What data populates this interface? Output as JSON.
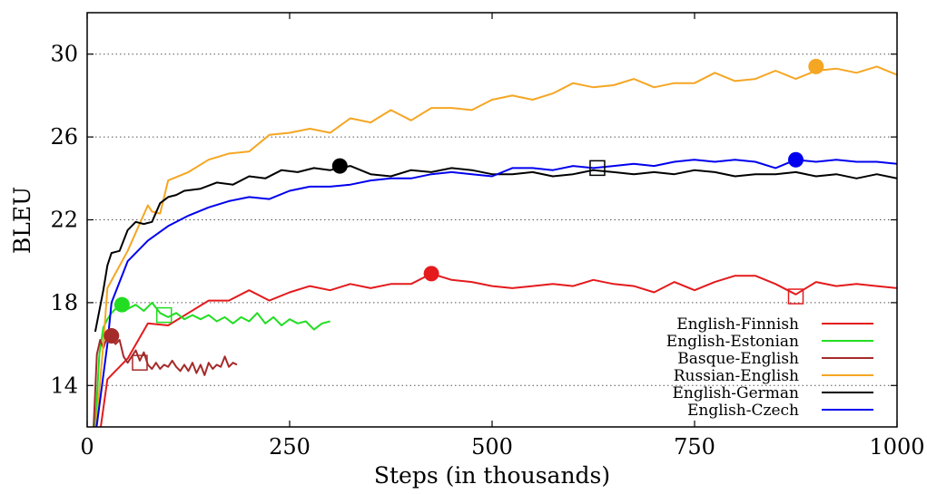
{
  "chart_data": {
    "type": "line",
    "title": "",
    "xlabel": "Steps (in thousands)",
    "ylabel": "BLEU",
    "xlim": [
      0,
      1000
    ],
    "ylim": [
      12,
      32
    ],
    "xticks": [
      0,
      250,
      500,
      750,
      1000
    ],
    "yticks": [
      14,
      18,
      22,
      26,
      30
    ],
    "grid": "horizontal dotted",
    "legend_position": "bottom-right",
    "series": [
      {
        "name": "English-Finnish",
        "color": "#e41a1c",
        "points": [
          [
            15,
            11.5
          ],
          [
            25,
            14.3
          ],
          [
            50,
            15.3
          ],
          [
            75,
            17.0
          ],
          [
            100,
            16.9
          ],
          [
            125,
            17.5
          ],
          [
            150,
            18.1
          ],
          [
            175,
            18.1
          ],
          [
            200,
            18.6
          ],
          [
            225,
            18.1
          ],
          [
            250,
            18.5
          ],
          [
            275,
            18.8
          ],
          [
            300,
            18.6
          ],
          [
            325,
            18.9
          ],
          [
            350,
            18.7
          ],
          [
            375,
            18.9
          ],
          [
            400,
            18.9
          ],
          [
            425,
            19.4
          ],
          [
            450,
            19.1
          ],
          [
            475,
            19.0
          ],
          [
            500,
            18.8
          ],
          [
            525,
            18.7
          ],
          [
            550,
            18.8
          ],
          [
            575,
            18.9
          ],
          [
            600,
            18.8
          ],
          [
            625,
            19.1
          ],
          [
            650,
            18.9
          ],
          [
            675,
            18.8
          ],
          [
            700,
            18.5
          ],
          [
            725,
            19.0
          ],
          [
            750,
            18.6
          ],
          [
            775,
            19.0
          ],
          [
            800,
            19.3
          ],
          [
            825,
            19.3
          ],
          [
            850,
            18.9
          ],
          [
            875,
            18.4
          ],
          [
            900,
            19.0
          ],
          [
            925,
            18.8
          ],
          [
            950,
            18.9
          ],
          [
            975,
            18.8
          ],
          [
            1000,
            18.7
          ]
        ],
        "marker_circle": [
          425,
          19.4
        ],
        "marker_square": [
          875,
          18.3
        ]
      },
      {
        "name": "English-Estonian",
        "color": "#22dd22",
        "points": [
          [
            10,
            12.0
          ],
          [
            15,
            15.5
          ],
          [
            20,
            16.8
          ],
          [
            25,
            17.2
          ],
          [
            30,
            17.5
          ],
          [
            40,
            17.9
          ],
          [
            50,
            17.7
          ],
          [
            60,
            17.9
          ],
          [
            70,
            17.6
          ],
          [
            80,
            18.0
          ],
          [
            90,
            17.5
          ],
          [
            100,
            17.3
          ],
          [
            110,
            17.5
          ],
          [
            120,
            17.2
          ],
          [
            130,
            17.4
          ],
          [
            140,
            17.2
          ],
          [
            150,
            17.4
          ],
          [
            160,
            17.1
          ],
          [
            170,
            17.3
          ],
          [
            180,
            17.0
          ],
          [
            190,
            17.3
          ],
          [
            200,
            17.1
          ],
          [
            210,
            17.5
          ],
          [
            220,
            17.0
          ],
          [
            230,
            17.3
          ],
          [
            240,
            16.9
          ],
          [
            250,
            17.2
          ],
          [
            260,
            17.0
          ],
          [
            270,
            17.1
          ],
          [
            280,
            16.7
          ],
          [
            290,
            17.0
          ],
          [
            300,
            17.1
          ]
        ],
        "marker_circle": [
          43,
          17.9
        ],
        "marker_square": [
          95,
          17.4
        ]
      },
      {
        "name": "Basque-English",
        "color": "#a52a2a",
        "points": [
          [
            8,
            12.0
          ],
          [
            12,
            15.5
          ],
          [
            16,
            16.2
          ],
          [
            20,
            15.8
          ],
          [
            25,
            16.4
          ],
          [
            30,
            16.3
          ],
          [
            35,
            16.0
          ],
          [
            40,
            16.2
          ],
          [
            45,
            15.4
          ],
          [
            50,
            15.1
          ],
          [
            55,
            15.4
          ],
          [
            60,
            15.7
          ],
          [
            65,
            15.2
          ],
          [
            70,
            15.6
          ],
          [
            75,
            15.0
          ],
          [
            80,
            14.8
          ],
          [
            85,
            15.1
          ],
          [
            90,
            14.8
          ],
          [
            95,
            15.0
          ],
          [
            100,
            14.9
          ],
          [
            105,
            15.2
          ],
          [
            110,
            14.9
          ],
          [
            115,
            14.7
          ],
          [
            120,
            15.0
          ],
          [
            125,
            14.7
          ],
          [
            130,
            15.1
          ],
          [
            135,
            14.6
          ],
          [
            140,
            15.0
          ],
          [
            145,
            14.5
          ],
          [
            150,
            15.1
          ],
          [
            155,
            14.8
          ],
          [
            160,
            15.0
          ],
          [
            165,
            14.9
          ],
          [
            170,
            15.4
          ],
          [
            175,
            14.9
          ],
          [
            180,
            15.1
          ],
          [
            185,
            15.0
          ]
        ],
        "marker_circle": [
          30,
          16.4
        ],
        "marker_square": [
          65,
          15.1
        ]
      },
      {
        "name": "Russian-English",
        "color": "#f5a623",
        "points": [
          [
            10,
            11.5
          ],
          [
            20,
            16.0
          ],
          [
            25,
            18.7
          ],
          [
            50,
            20.5
          ],
          [
            75,
            22.7
          ],
          [
            80,
            22.4
          ],
          [
            90,
            22.3
          ],
          [
            100,
            23.9
          ],
          [
            125,
            24.3
          ],
          [
            150,
            24.9
          ],
          [
            175,
            25.2
          ],
          [
            200,
            25.3
          ],
          [
            225,
            26.1
          ],
          [
            250,
            26.2
          ],
          [
            275,
            26.4
          ],
          [
            300,
            26.2
          ],
          [
            325,
            26.9
          ],
          [
            350,
            26.7
          ],
          [
            375,
            27.3
          ],
          [
            400,
            26.8
          ],
          [
            425,
            27.4
          ],
          [
            450,
            27.4
          ],
          [
            475,
            27.3
          ],
          [
            500,
            27.8
          ],
          [
            525,
            28.0
          ],
          [
            550,
            27.8
          ],
          [
            575,
            28.1
          ],
          [
            600,
            28.6
          ],
          [
            625,
            28.4
          ],
          [
            650,
            28.5
          ],
          [
            675,
            28.8
          ],
          [
            700,
            28.4
          ],
          [
            725,
            28.6
          ],
          [
            750,
            28.6
          ],
          [
            775,
            29.1
          ],
          [
            800,
            28.7
          ],
          [
            825,
            28.8
          ],
          [
            850,
            29.2
          ],
          [
            875,
            28.8
          ],
          [
            900,
            29.2
          ],
          [
            925,
            29.3
          ],
          [
            950,
            29.1
          ],
          [
            975,
            29.4
          ],
          [
            1000,
            29.0
          ]
        ],
        "marker_circle": [
          900,
          29.4
        ]
      },
      {
        "name": "English-German",
        "color": "#000000",
        "points": [
          [
            10,
            16.6
          ],
          [
            20,
            18.6
          ],
          [
            25,
            19.8
          ],
          [
            30,
            20.4
          ],
          [
            40,
            20.5
          ],
          [
            50,
            21.5
          ],
          [
            60,
            21.9
          ],
          [
            70,
            21.8
          ],
          [
            80,
            21.9
          ],
          [
            90,
            22.8
          ],
          [
            100,
            23.1
          ],
          [
            110,
            23.2
          ],
          [
            120,
            23.4
          ],
          [
            140,
            23.5
          ],
          [
            160,
            23.8
          ],
          [
            180,
            23.7
          ],
          [
            200,
            24.1
          ],
          [
            220,
            24.0
          ],
          [
            240,
            24.4
          ],
          [
            260,
            24.3
          ],
          [
            280,
            24.5
          ],
          [
            300,
            24.4
          ],
          [
            325,
            24.6
          ],
          [
            350,
            24.2
          ],
          [
            375,
            24.1
          ],
          [
            400,
            24.4
          ],
          [
            425,
            24.3
          ],
          [
            450,
            24.5
          ],
          [
            475,
            24.4
          ],
          [
            500,
            24.2
          ],
          [
            525,
            24.2
          ],
          [
            550,
            24.3
          ],
          [
            575,
            24.1
          ],
          [
            600,
            24.2
          ],
          [
            625,
            24.4
          ],
          [
            650,
            24.3
          ],
          [
            675,
            24.2
          ],
          [
            700,
            24.3
          ],
          [
            725,
            24.2
          ],
          [
            750,
            24.4
          ],
          [
            775,
            24.3
          ],
          [
            800,
            24.1
          ],
          [
            825,
            24.2
          ],
          [
            850,
            24.2
          ],
          [
            875,
            24.3
          ],
          [
            900,
            24.1
          ],
          [
            925,
            24.2
          ],
          [
            950,
            24.0
          ],
          [
            975,
            24.2
          ],
          [
            1000,
            24.0
          ]
        ],
        "marker_circle": [
          312,
          24.6
        ],
        "marker_square": [
          630,
          24.5
        ]
      },
      {
        "name": "English-Czech",
        "color": "#0000ee",
        "points": [
          [
            10,
            11.5
          ],
          [
            25,
            16.0
          ],
          [
            30,
            18.0
          ],
          [
            50,
            20.0
          ],
          [
            75,
            21.0
          ],
          [
            100,
            21.7
          ],
          [
            125,
            22.2
          ],
          [
            150,
            22.6
          ],
          [
            175,
            22.9
          ],
          [
            200,
            23.1
          ],
          [
            225,
            23.0
          ],
          [
            250,
            23.4
          ],
          [
            275,
            23.6
          ],
          [
            300,
            23.6
          ],
          [
            325,
            23.7
          ],
          [
            350,
            23.9
          ],
          [
            375,
            24.0
          ],
          [
            400,
            24.0
          ],
          [
            425,
            24.2
          ],
          [
            450,
            24.3
          ],
          [
            475,
            24.2
          ],
          [
            500,
            24.1
          ],
          [
            525,
            24.5
          ],
          [
            550,
            24.5
          ],
          [
            575,
            24.4
          ],
          [
            600,
            24.6
          ],
          [
            625,
            24.5
          ],
          [
            650,
            24.6
          ],
          [
            675,
            24.7
          ],
          [
            700,
            24.6
          ],
          [
            725,
            24.8
          ],
          [
            750,
            24.9
          ],
          [
            775,
            24.8
          ],
          [
            800,
            24.9
          ],
          [
            825,
            24.8
          ],
          [
            850,
            24.5
          ],
          [
            875,
            24.9
          ],
          [
            900,
            24.8
          ],
          [
            925,
            24.9
          ],
          [
            950,
            24.8
          ],
          [
            975,
            24.8
          ],
          [
            1000,
            24.7
          ]
        ],
        "marker_circle": [
          875,
          24.9
        ]
      }
    ]
  }
}
